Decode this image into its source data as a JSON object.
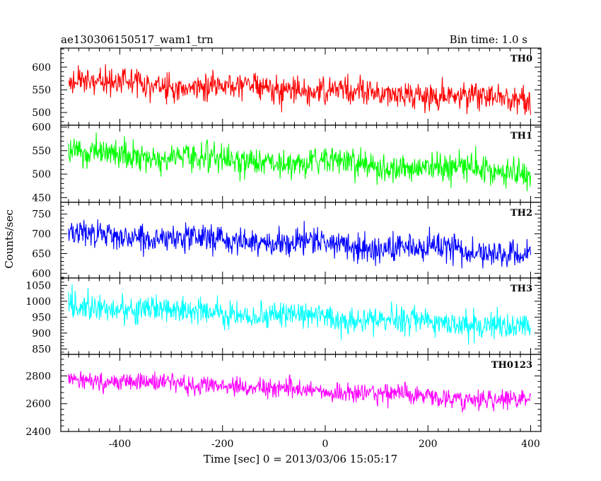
{
  "chart_data": {
    "type": "line",
    "title_left": "ae130306150517_wam1_trn",
    "title_right": "Bin time: 1.0 s",
    "xlabel": "Time [sec] 0 = 2013/03/06 15:05:17",
    "ylabel": "Counts/sec",
    "xlim": [
      -515,
      420
    ],
    "x_ticks": [
      "-400",
      "-200",
      "0",
      "200",
      "400"
    ],
    "x_tick_values": [
      -400,
      -200,
      0,
      200,
      400
    ],
    "data_x_range": [
      -500,
      400
    ],
    "bin_time": 1.0,
    "panels": [
      {
        "name": "TH0",
        "color": "#ff0000",
        "ylim": [
          472,
          642
        ],
        "y_ticks": [
          "500",
          "550",
          "600"
        ],
        "y_tick_values": [
          500,
          550,
          600
        ],
        "trend_start": 570,
        "trend_end": 530,
        "noise_amplitude": 40
      },
      {
        "name": "TH1",
        "color": "#00ff00",
        "ylim": [
          440,
          604
        ],
        "y_ticks": [
          "450",
          "500",
          "550",
          "600"
        ],
        "y_tick_values": [
          450,
          500,
          550,
          600
        ],
        "trend_start": 545,
        "trend_end": 505,
        "noise_amplitude": 40
      },
      {
        "name": "TH2",
        "color": "#0000ff",
        "ylim": [
          588,
          780
        ],
        "y_ticks": [
          "600",
          "650",
          "700",
          "750"
        ],
        "y_tick_values": [
          600,
          650,
          700,
          750
        ],
        "trend_start": 700,
        "trend_end": 650,
        "noise_amplitude": 45
      },
      {
        "name": "TH3",
        "color": "#00ffff",
        "ylim": [
          833,
          1073
        ],
        "y_ticks": [
          "850",
          "900",
          "950",
          "1000",
          "1050"
        ],
        "y_tick_values": [
          850,
          900,
          950,
          1000,
          1050
        ],
        "trend_start": 985,
        "trend_end": 920,
        "noise_amplitude": 55
      },
      {
        "name": "TH0123",
        "color": "#ff00ff",
        "ylim": [
          2400,
          2955
        ],
        "y_ticks": [
          "2400",
          "2600",
          "2800"
        ],
        "y_tick_values": [
          2400,
          2600,
          2800
        ],
        "trend_start": 2780,
        "trend_end": 2620,
        "noise_amplitude": 90
      }
    ]
  }
}
